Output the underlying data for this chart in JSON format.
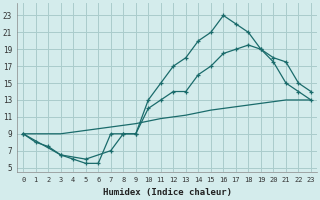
{
  "xlabel": "Humidex (Indice chaleur)",
  "bg_color": "#d4ecec",
  "grid_color": "#aacccc",
  "line_color": "#1a6b6b",
  "x_ticks": [
    0,
    1,
    2,
    3,
    4,
    5,
    6,
    7,
    8,
    9,
    10,
    11,
    12,
    13,
    14,
    15,
    16,
    17,
    18,
    19,
    20,
    21,
    22,
    23
  ],
  "y_ticks": [
    5,
    7,
    9,
    11,
    13,
    15,
    17,
    19,
    21,
    23
  ],
  "xlim": [
    -0.5,
    23.5
  ],
  "ylim": [
    4.5,
    24.5
  ],
  "line1_x": [
    0,
    1,
    2,
    3,
    4,
    5,
    6,
    7,
    8,
    9,
    10,
    11,
    12,
    13,
    14,
    15,
    16,
    17,
    18,
    19,
    20,
    21,
    22,
    23
  ],
  "line1_y": [
    9,
    8,
    7.5,
    6.5,
    6,
    5.5,
    5.5,
    9,
    9,
    9,
    13,
    15,
    17,
    18,
    20,
    21,
    23,
    22,
    21,
    19,
    17.5,
    15,
    14,
    13
  ],
  "line2_x": [
    0,
    3,
    5,
    7,
    8,
    9,
    10,
    11,
    12,
    13,
    14,
    15,
    16,
    17,
    18,
    19,
    20,
    21,
    22,
    23
  ],
  "line2_y": [
    9,
    6.5,
    6,
    7,
    9,
    9,
    12,
    13,
    14,
    14,
    16,
    17,
    18.5,
    19,
    19.5,
    19,
    18,
    17.5,
    15,
    14
  ],
  "line3_x": [
    0,
    1,
    2,
    3,
    4,
    5,
    6,
    7,
    8,
    9,
    10,
    11,
    12,
    13,
    14,
    15,
    16,
    17,
    18,
    19,
    20,
    21,
    22,
    23
  ],
  "line3_y": [
    9,
    9,
    9,
    9,
    9.2,
    9.4,
    9.6,
    9.8,
    10,
    10.2,
    10.5,
    10.8,
    11,
    11.2,
    11.5,
    11.8,
    12,
    12.2,
    12.4,
    12.6,
    12.8,
    13,
    13,
    13
  ]
}
